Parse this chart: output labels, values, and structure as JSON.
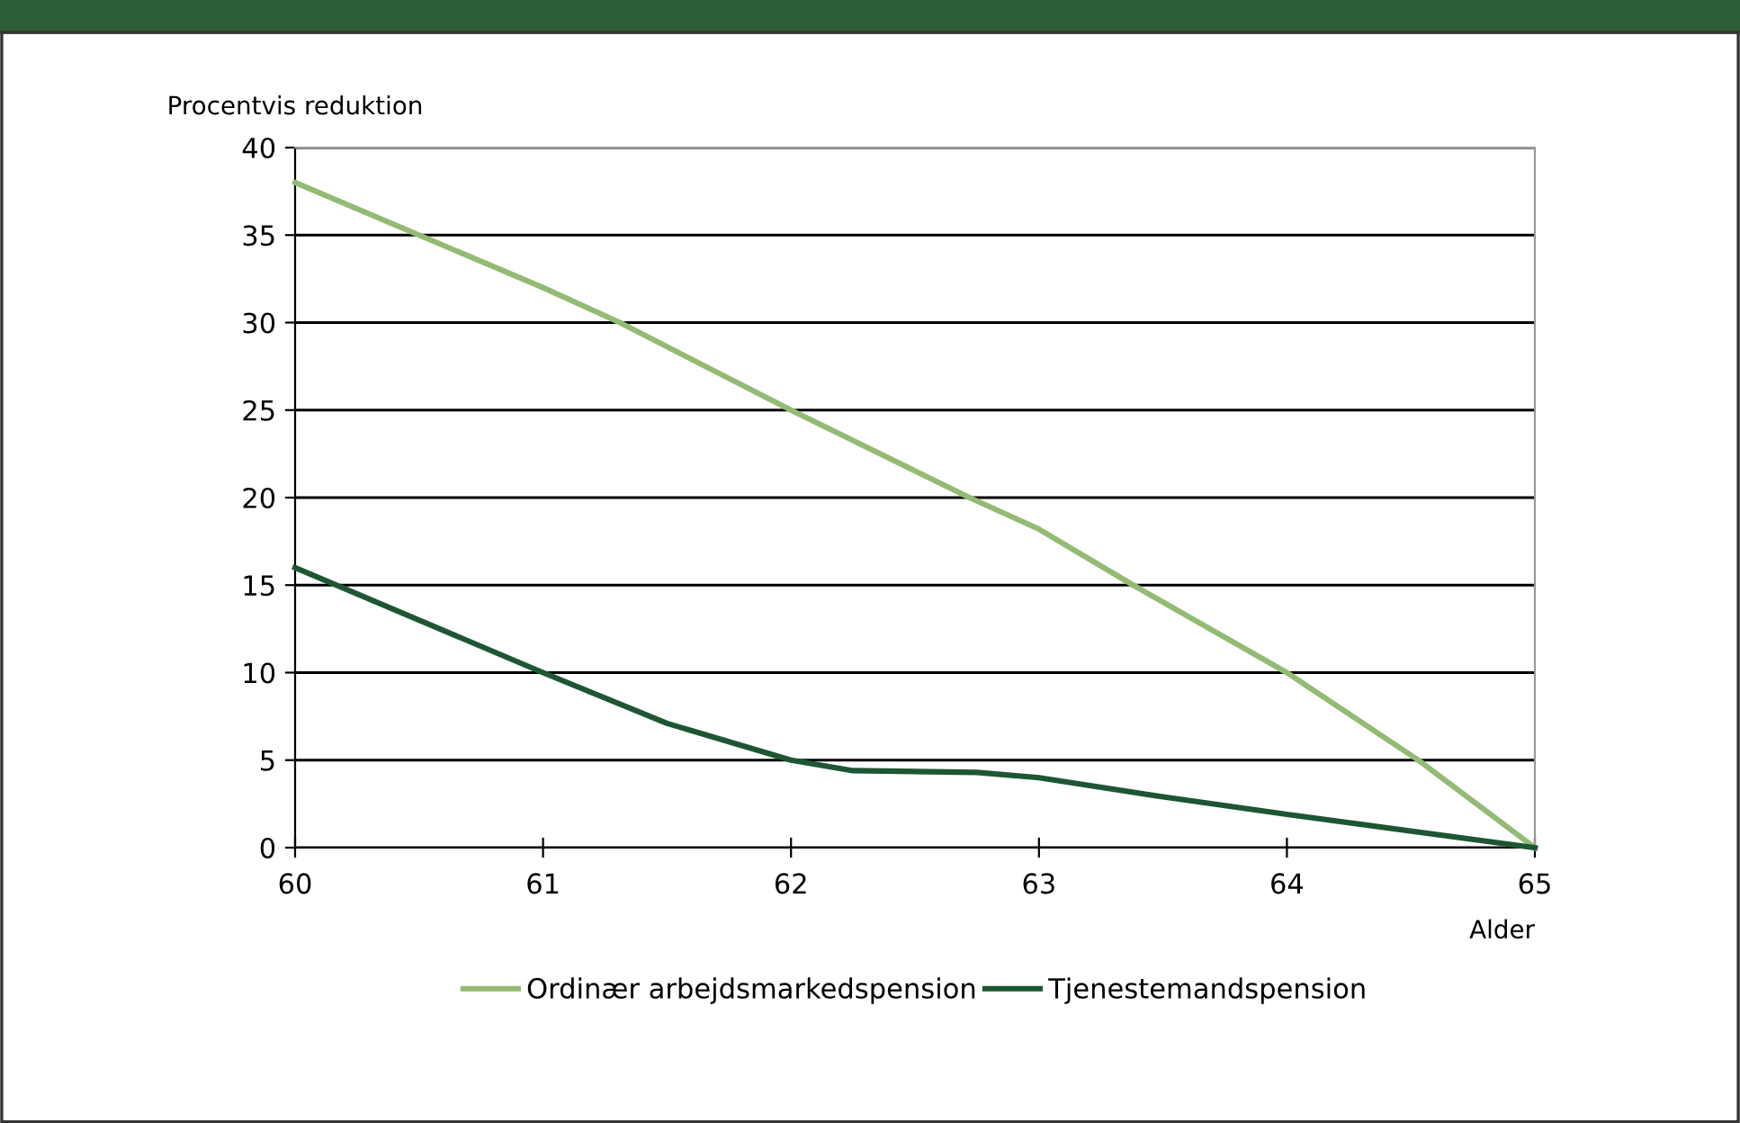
{
  "chart_data": {
    "type": "line",
    "ylabel": "Procentvis reduktion",
    "xlabel": "Alder",
    "xlim": [
      60,
      65
    ],
    "xticks": [
      60,
      61,
      62,
      63,
      64,
      65
    ],
    "ylim": [
      0,
      40
    ],
    "yticks": [
      0,
      5,
      10,
      15,
      20,
      25,
      30,
      35,
      40
    ],
    "grid": "y",
    "legend": "bottom",
    "marker": "none",
    "line_style": "solid",
    "series": [
      {
        "name": "Ordinær arbejdsmarkedspension",
        "color": "#93bb73",
        "x": [
          60,
          60.5,
          61,
          61.31,
          62,
          62.72,
          63,
          63.38,
          64,
          64.53,
          65
        ],
        "values": [
          38,
          35,
          32,
          30,
          25,
          20,
          18.2,
          15,
          10,
          5,
          0
        ]
      },
      {
        "name": "Tjenestemandspension",
        "color": "#1d5632",
        "x": [
          60,
          61,
          61.5,
          62,
          62.25,
          62.75,
          63,
          63.5,
          64,
          65
        ],
        "values": [
          16,
          10,
          7.1,
          5,
          4.4,
          4.3,
          4.0,
          2.9,
          1.9,
          0
        ]
      }
    ]
  }
}
